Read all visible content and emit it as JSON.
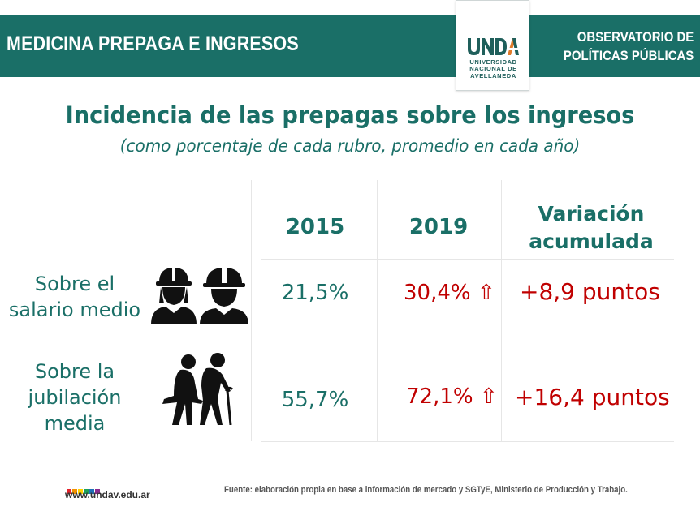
{
  "header": {
    "title": "MEDICINA PREPAGA E INGRESOS",
    "right_line1": "OBSERVATORIO DE",
    "right_line2": "POLÍTICAS PÚBLICAS"
  },
  "logo": {
    "mark": "UNDAV",
    "line1": "UNIVERSIDAD",
    "line2": "NACIONAL DE",
    "line3": "AVELLANEDA"
  },
  "title": "Incidencia de las prepagas sobre los ingresos",
  "subtitle": "(como porcentaje de cada rubro, promedio en cada año)",
  "table": {
    "headers": {
      "year1": "2015",
      "year2": "2019",
      "variation_line1": "Variación",
      "variation_line2": "acumulada"
    },
    "rows": [
      {
        "label_line1": "Sobre el",
        "label_line2": "salario medio",
        "icon": "workers-icon",
        "v2015": "21,5%",
        "v2019": "30,4%",
        "arrow": "⇧",
        "variation": "+8,9 puntos"
      },
      {
        "label_line1": "Sobre la",
        "label_line2": "jubilación",
        "label_line3": "media",
        "icon": "elderly-couple-icon",
        "v2015": "55,7%",
        "v2019": "72,1%",
        "arrow": "⇧",
        "variation": "+16,4 puntos"
      }
    ]
  },
  "footer": {
    "url": "www.undav.edu.ar",
    "source": "Fuente: elaboración propia en base a información de mercado y SGTyE, Ministerio de Producción y Trabajo.",
    "dot_colors": [
      "#e3232c",
      "#f39200",
      "#ffd100",
      "#1d9f5b",
      "#1d71b8",
      "#8a2b8f"
    ]
  },
  "colors": {
    "brand_teal": "#1a6f67",
    "highlight_red": "#c00000"
  }
}
